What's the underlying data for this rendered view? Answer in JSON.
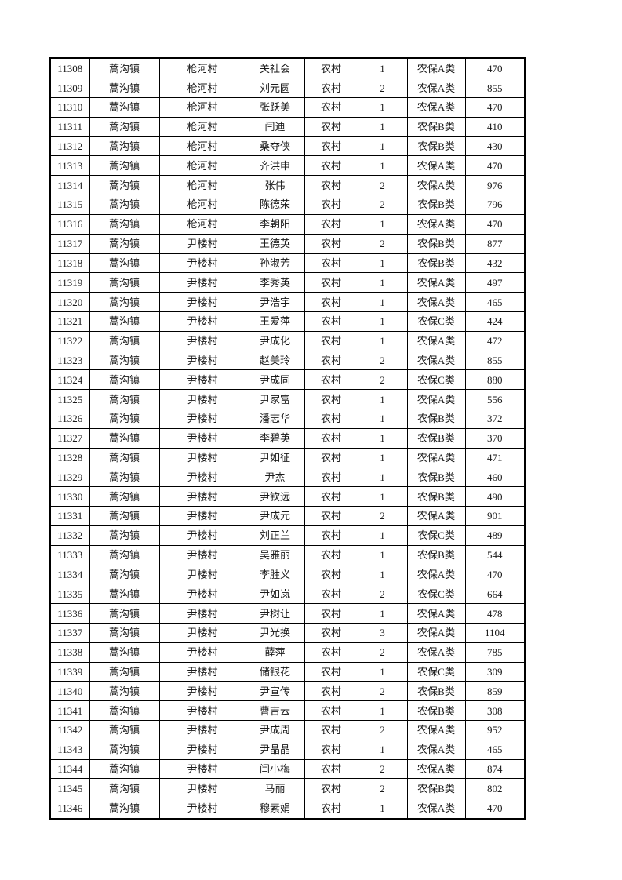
{
  "page": {
    "background": "#ffffff",
    "text_color": "#1a1a1a",
    "border_color": "#000000"
  },
  "table": {
    "column_keys": [
      "record-id",
      "town",
      "village",
      "person-name",
      "residence-type",
      "person-count",
      "insurance-category",
      "amount"
    ],
    "rows": [
      [
        "11308",
        "蒿沟镇",
        "枪河村",
        "关社会",
        "农村",
        "1",
        "农保A类",
        "470"
      ],
      [
        "11309",
        "蒿沟镇",
        "枪河村",
        "刘元圆",
        "农村",
        "2",
        "农保A类",
        "855"
      ],
      [
        "11310",
        "蒿沟镇",
        "枪河村",
        "张跃美",
        "农村",
        "1",
        "农保A类",
        "470"
      ],
      [
        "11311",
        "蒿沟镇",
        "枪河村",
        "闫迪",
        "农村",
        "1",
        "农保B类",
        "410"
      ],
      [
        "11312",
        "蒿沟镇",
        "枪河村",
        "桑夺侠",
        "农村",
        "1",
        "农保B类",
        "430"
      ],
      [
        "11313",
        "蒿沟镇",
        "枪河村",
        "齐洪申",
        "农村",
        "1",
        "农保A类",
        "470"
      ],
      [
        "11314",
        "蒿沟镇",
        "枪河村",
        "张伟",
        "农村",
        "2",
        "农保A类",
        "976"
      ],
      [
        "11315",
        "蒿沟镇",
        "枪河村",
        "陈德荣",
        "农村",
        "2",
        "农保B类",
        "796"
      ],
      [
        "11316",
        "蒿沟镇",
        "枪河村",
        "李朝阳",
        "农村",
        "1",
        "农保A类",
        "470"
      ],
      [
        "11317",
        "蒿沟镇",
        "尹楼村",
        "王德英",
        "农村",
        "2",
        "农保B类",
        "877"
      ],
      [
        "11318",
        "蒿沟镇",
        "尹楼村",
        "孙淑芳",
        "农村",
        "1",
        "农保B类",
        "432"
      ],
      [
        "11319",
        "蒿沟镇",
        "尹楼村",
        "李秀英",
        "农村",
        "1",
        "农保A类",
        "497"
      ],
      [
        "11320",
        "蒿沟镇",
        "尹楼村",
        "尹浩宇",
        "农村",
        "1",
        "农保A类",
        "465"
      ],
      [
        "11321",
        "蒿沟镇",
        "尹楼村",
        "王爱萍",
        "农村",
        "1",
        "农保C类",
        "424"
      ],
      [
        "11322",
        "蒿沟镇",
        "尹楼村",
        "尹成化",
        "农村",
        "1",
        "农保A类",
        "472"
      ],
      [
        "11323",
        "蒿沟镇",
        "尹楼村",
        "赵美玲",
        "农村",
        "2",
        "农保A类",
        "855"
      ],
      [
        "11324",
        "蒿沟镇",
        "尹楼村",
        "尹成同",
        "农村",
        "2",
        "农保C类",
        "880"
      ],
      [
        "11325",
        "蒿沟镇",
        "尹楼村",
        "尹家富",
        "农村",
        "1",
        "农保A类",
        "556"
      ],
      [
        "11326",
        "蒿沟镇",
        "尹楼村",
        "潘志华",
        "农村",
        "1",
        "农保B类",
        "372"
      ],
      [
        "11327",
        "蒿沟镇",
        "尹楼村",
        "李碧英",
        "农村",
        "1",
        "农保B类",
        "370"
      ],
      [
        "11328",
        "蒿沟镇",
        "尹楼村",
        "尹如征",
        "农村",
        "1",
        "农保A类",
        "471"
      ],
      [
        "11329",
        "蒿沟镇",
        "尹楼村",
        "尹杰",
        "农村",
        "1",
        "农保B类",
        "460"
      ],
      [
        "11330",
        "蒿沟镇",
        "尹楼村",
        "尹钦远",
        "农村",
        "1",
        "农保B类",
        "490"
      ],
      [
        "11331",
        "蒿沟镇",
        "尹楼村",
        "尹成元",
        "农村",
        "2",
        "农保A类",
        "901"
      ],
      [
        "11332",
        "蒿沟镇",
        "尹楼村",
        "刘正兰",
        "农村",
        "1",
        "农保C类",
        "489"
      ],
      [
        "11333",
        "蒿沟镇",
        "尹楼村",
        "吴雅丽",
        "农村",
        "1",
        "农保B类",
        "544"
      ],
      [
        "11334",
        "蒿沟镇",
        "尹楼村",
        "李胜义",
        "农村",
        "1",
        "农保A类",
        "470"
      ],
      [
        "11335",
        "蒿沟镇",
        "尹楼村",
        "尹如岚",
        "农村",
        "2",
        "农保C类",
        "664"
      ],
      [
        "11336",
        "蒿沟镇",
        "尹楼村",
        "尹树让",
        "农村",
        "1",
        "农保A类",
        "478"
      ],
      [
        "11337",
        "蒿沟镇",
        "尹楼村",
        "尹光换",
        "农村",
        "3",
        "农保A类",
        "1104"
      ],
      [
        "11338",
        "蒿沟镇",
        "尹楼村",
        "薛萍",
        "农村",
        "2",
        "农保A类",
        "785"
      ],
      [
        "11339",
        "蒿沟镇",
        "尹楼村",
        "储银花",
        "农村",
        "1",
        "农保C类",
        "309"
      ],
      [
        "11340",
        "蒿沟镇",
        "尹楼村",
        "尹宣传",
        "农村",
        "2",
        "农保B类",
        "859"
      ],
      [
        "11341",
        "蒿沟镇",
        "尹楼村",
        "曹吉云",
        "农村",
        "1",
        "农保B类",
        "308"
      ],
      [
        "11342",
        "蒿沟镇",
        "尹楼村",
        "尹成周",
        "农村",
        "2",
        "农保A类",
        "952"
      ],
      [
        "11343",
        "蒿沟镇",
        "尹楼村",
        "尹晶晶",
        "农村",
        "1",
        "农保A类",
        "465"
      ],
      [
        "11344",
        "蒿沟镇",
        "尹楼村",
        "闫小梅",
        "农村",
        "2",
        "农保A类",
        "874"
      ],
      [
        "11345",
        "蒿沟镇",
        "尹楼村",
        "马丽",
        "农村",
        "2",
        "农保B类",
        "802"
      ],
      [
        "11346",
        "蒿沟镇",
        "尹楼村",
        "穆素娟",
        "农村",
        "1",
        "农保A类",
        "470"
      ]
    ]
  }
}
